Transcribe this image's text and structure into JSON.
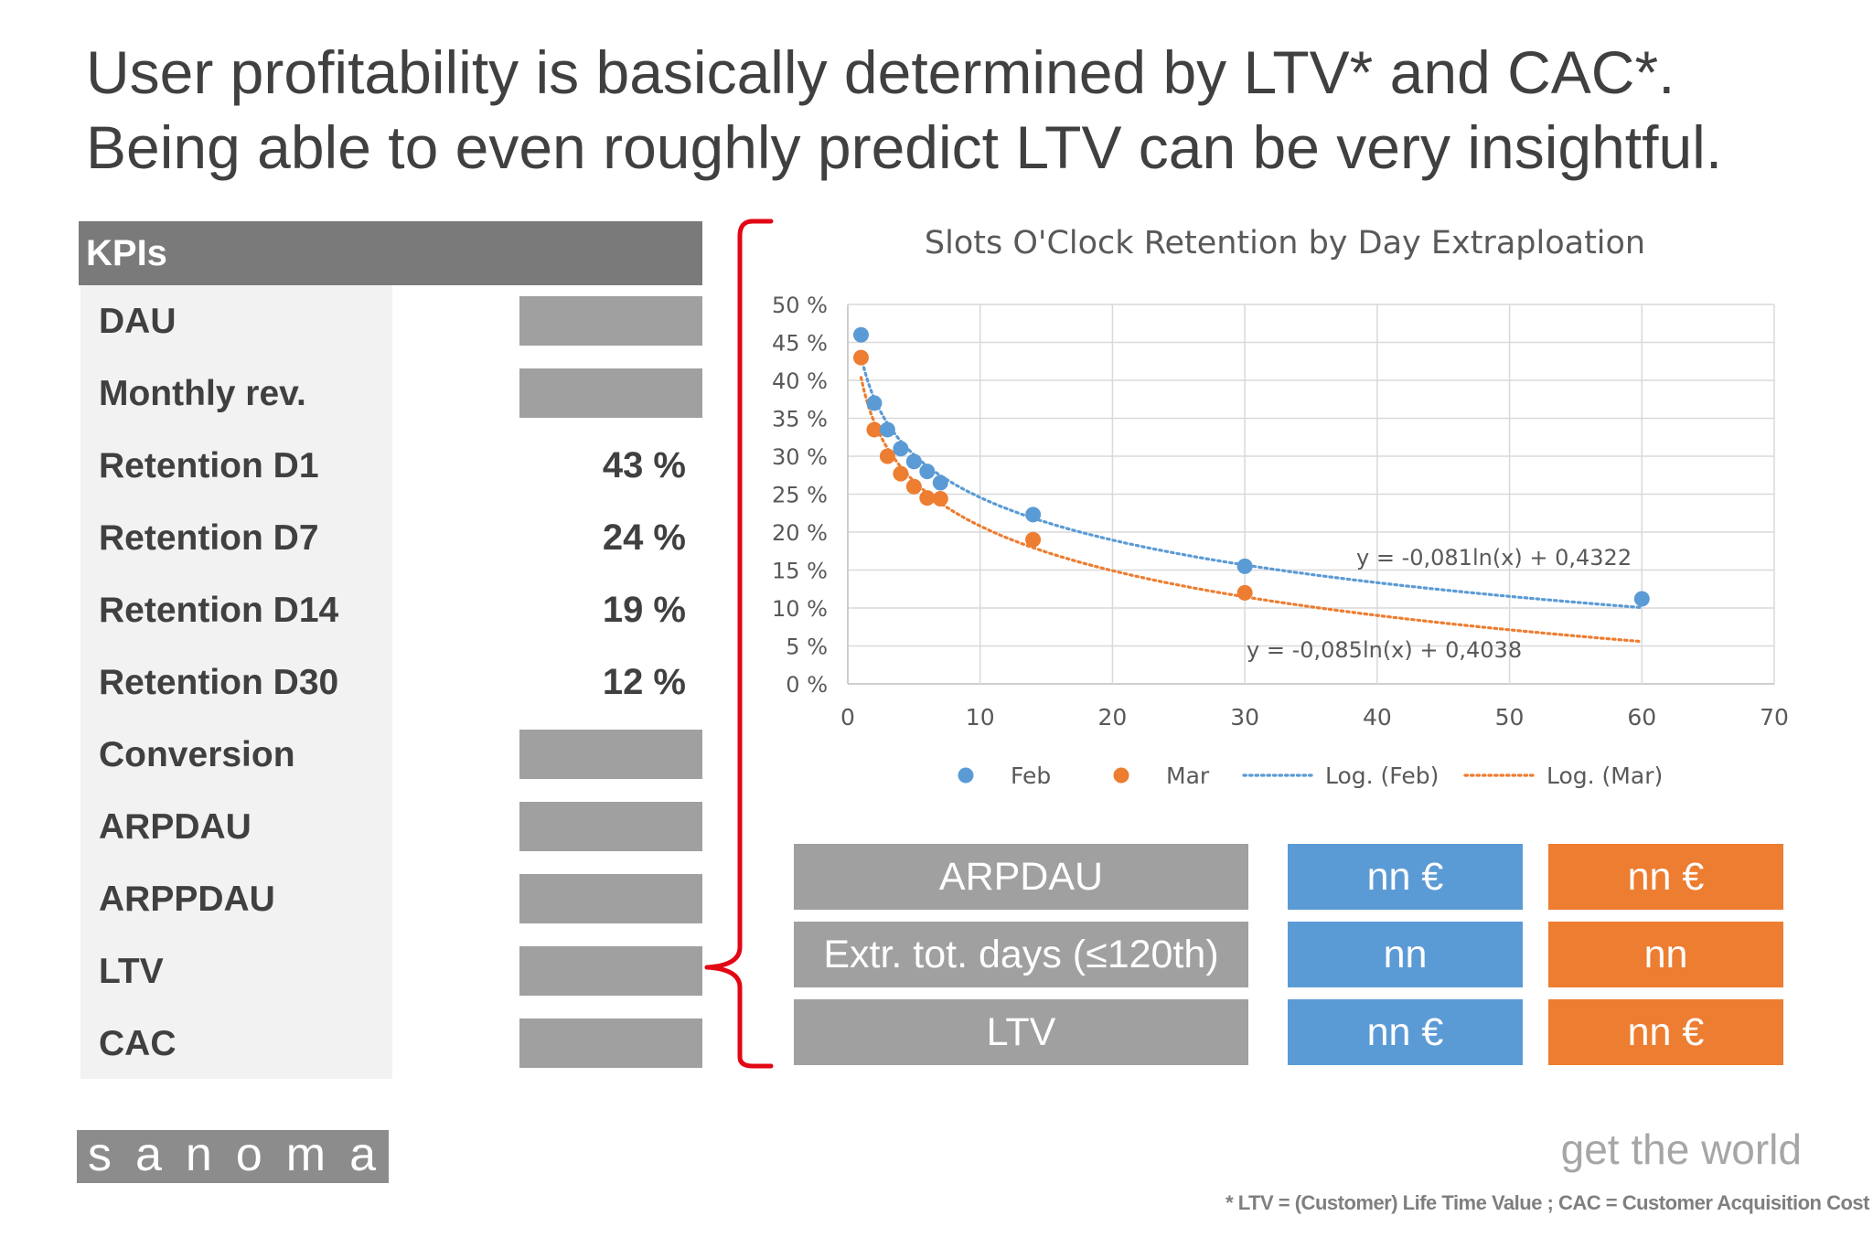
{
  "headline": {
    "line1": "User profitability is basically determined by LTV* and CAC*.",
    "line2": "Being able to even roughly predict LTV can be very insightful."
  },
  "kpis": {
    "header": "KPIs",
    "rows": [
      {
        "label": "DAU",
        "value": ""
      },
      {
        "label": "Monthly rev.",
        "value": ""
      },
      {
        "label": "Retention D1",
        "value": "43 %"
      },
      {
        "label": "Retention D7",
        "value": "24 %"
      },
      {
        "label": "Retention D14",
        "value": "19 %"
      },
      {
        "label": "Retention D30",
        "value": "12 %"
      },
      {
        "label": "Conversion",
        "value": ""
      },
      {
        "label": "ARPDAU",
        "value": ""
      },
      {
        "label": "ARPPDAU",
        "value": ""
      },
      {
        "label": "LTV",
        "value": ""
      },
      {
        "label": "CAC",
        "value": ""
      }
    ]
  },
  "bracket_color": "#e30613",
  "chart_data": {
    "type": "scatter",
    "title": "Slots O'Clock Retention by Day Extraploation",
    "xlim": [
      0,
      70
    ],
    "ylim": [
      0,
      0.5
    ],
    "x_ticks": [
      "0",
      "10",
      "20",
      "30",
      "40",
      "50",
      "60",
      "70"
    ],
    "y_ticks": [
      "0 %",
      "5 %",
      "10 %",
      "15 %",
      "20 %",
      "25 %",
      "30 %",
      "35 %",
      "40 %",
      "45 %",
      "50 %"
    ],
    "grid": true,
    "legend_position": "bottom",
    "series": [
      {
        "name": "Feb",
        "color": "#5b9bd5",
        "x": [
          1,
          2,
          3,
          4,
          5,
          6,
          7,
          14,
          30,
          60
        ],
        "y": [
          0.46,
          0.37,
          0.335,
          0.31,
          0.293,
          0.28,
          0.265,
          0.223,
          0.155,
          0.112
        ]
      },
      {
        "name": "Mar",
        "color": "#ed7d31",
        "x": [
          1,
          2,
          3,
          4,
          5,
          6,
          7,
          14,
          30
        ],
        "y": [
          0.43,
          0.335,
          0.3,
          0.277,
          0.26,
          0.245,
          0.244,
          0.19,
          0.12
        ]
      }
    ],
    "trendlines": [
      {
        "name": "Log. (Feb)",
        "color": "#5b9bd5",
        "a": -0.081,
        "b": 0.4322,
        "x_range": [
          1,
          60
        ],
        "equation": "y = -0,081ln(x) + 0,4322"
      },
      {
        "name": "Log. (Mar)",
        "color": "#ed7d31",
        "a": -0.085,
        "b": 0.4038,
        "x_range": [
          1,
          60
        ],
        "equation": "y = -0,085ln(x) + 0,4038"
      }
    ]
  },
  "summary_table": {
    "rows": [
      {
        "label": "ARPDAU",
        "feb": "nn €",
        "mar": "nn €"
      },
      {
        "label": "Extr. tot. days (≤120th)",
        "feb": "nn",
        "mar": "nn"
      },
      {
        "label": "LTV",
        "feb": "nn €",
        "mar": "nn €"
      }
    ]
  },
  "footer": {
    "logo": "sanoma",
    "tagline": "get the world",
    "footnote": "* LTV = (Customer) Life Time Value ; CAC = Customer Acquisition Cost"
  }
}
